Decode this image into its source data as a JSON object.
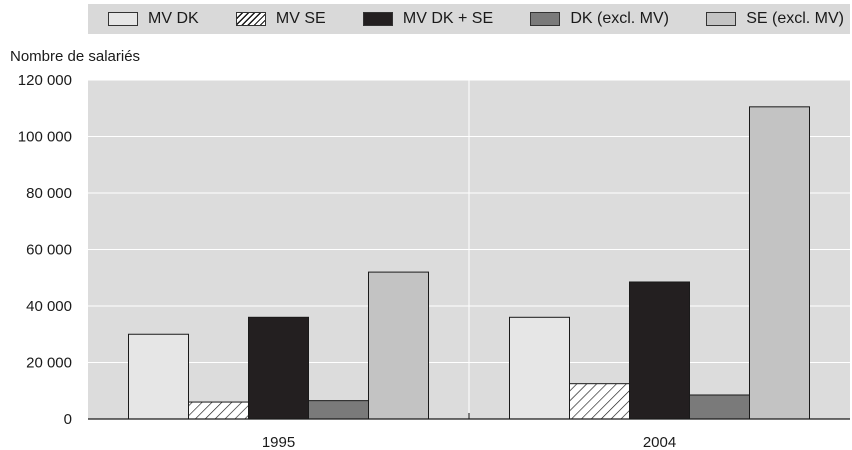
{
  "chart_data": {
    "type": "bar",
    "title": "",
    "xlabel": "",
    "ylabel": "Nombre de salariés",
    "categories": [
      "1995",
      "2004"
    ],
    "ylim": [
      0,
      120000
    ],
    "yticks": [
      "0",
      "20 000",
      "40 000",
      "60 000",
      "80 000",
      "100 000",
      "120 000"
    ],
    "ytick_values": [
      0,
      20000,
      40000,
      60000,
      80000,
      100000,
      120000
    ],
    "grid": true,
    "legend_position": "top",
    "series": [
      {
        "name": "MV DK",
        "values": [
          30000,
          36000
        ],
        "color": "#e6e6e6",
        "pattern": "solid"
      },
      {
        "name": "MV SE",
        "values": [
          6000,
          12500
        ],
        "color": "#ffffff",
        "pattern": "hatch"
      },
      {
        "name": "MV DK + SE",
        "values": [
          36000,
          48500
        ],
        "color": "#231f20",
        "pattern": "solid"
      },
      {
        "name": "DK (excl. MV)",
        "values": [
          6500,
          8500
        ],
        "color": "#7a7a7a",
        "pattern": "solid"
      },
      {
        "name": "SE (excl. MV)",
        "values": [
          52000,
          110500
        ],
        "color": "#c3c3c3",
        "pattern": "solid"
      }
    ]
  }
}
